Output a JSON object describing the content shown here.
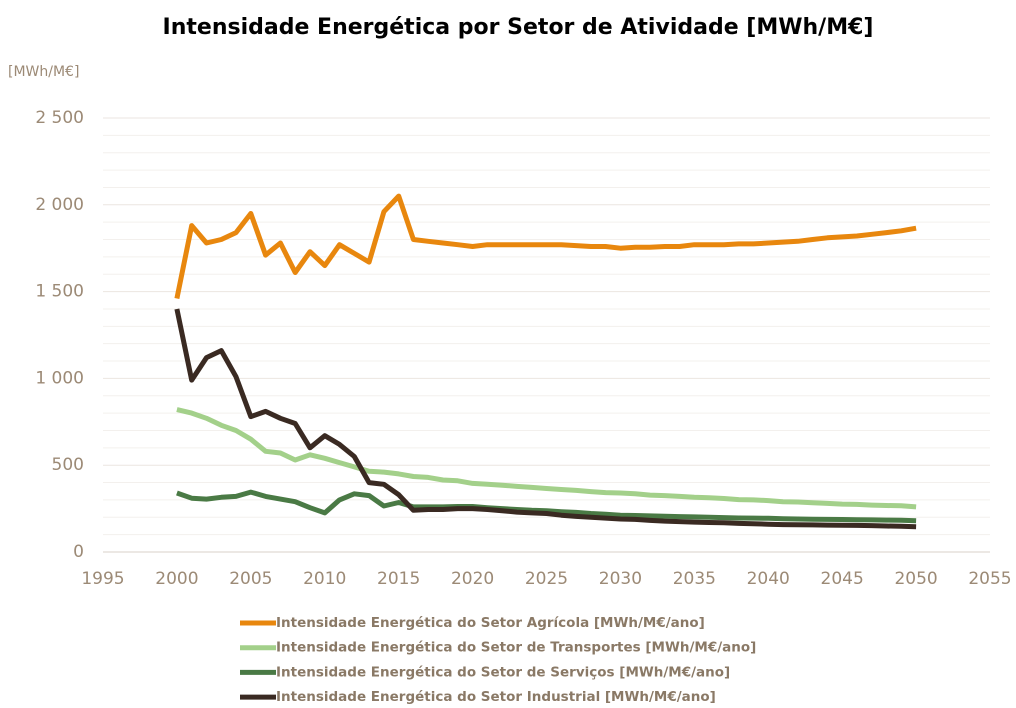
{
  "chart_data": {
    "type": "line",
    "title": "Intensidade Energética por Setor de Atividade [MWh/M€]",
    "y_label": "[MWh/M€]",
    "x": [
      2000,
      2001,
      2002,
      2003,
      2004,
      2005,
      2006,
      2007,
      2008,
      2009,
      2010,
      2011,
      2012,
      2013,
      2014,
      2015,
      2016,
      2017,
      2018,
      2019,
      2020,
      2021,
      2022,
      2023,
      2024,
      2025,
      2026,
      2027,
      2028,
      2029,
      2030,
      2031,
      2032,
      2033,
      2034,
      2035,
      2036,
      2037,
      2038,
      2039,
      2040,
      2041,
      2042,
      2043,
      2044,
      2045,
      2046,
      2047,
      2048,
      2049,
      2050
    ],
    "series": [
      {
        "name": "Intensidade Energética do Setor Agrícola [MWh/M€/ano]",
        "color": "#e8870e",
        "values": [
          1460,
          1880,
          1780,
          1800,
          1840,
          1950,
          1710,
          1780,
          1610,
          1730,
          1650,
          1770,
          1720,
          1670,
          1960,
          2050,
          1800,
          1790,
          1780,
          1770,
          1760,
          1770,
          1770,
          1770,
          1770,
          1770,
          1770,
          1765,
          1760,
          1760,
          1750,
          1755,
          1755,
          1760,
          1760,
          1770,
          1770,
          1770,
          1775,
          1775,
          1780,
          1785,
          1790,
          1800,
          1810,
          1815,
          1820,
          1830,
          1840,
          1850,
          1865
        ]
      },
      {
        "name": "Intensidade Energética do Setor de Transportes [MWh/M€/ano]",
        "color": "#a3d08a",
        "values": [
          820,
          800,
          770,
          730,
          700,
          650,
          580,
          570,
          530,
          560,
          540,
          515,
          490,
          465,
          460,
          450,
          435,
          430,
          415,
          410,
          395,
          390,
          385,
          378,
          372,
          366,
          360,
          355,
          348,
          342,
          340,
          335,
          328,
          325,
          320,
          315,
          312,
          308,
          302,
          300,
          296,
          290,
          288,
          284,
          280,
          276,
          274,
          270,
          268,
          266,
          260
        ]
      },
      {
        "name": "Intensidade Energética do Setor de Serviços [MWh/M€/ano]",
        "color": "#4a7a45",
        "values": [
          340,
          310,
          305,
          315,
          320,
          345,
          320,
          305,
          290,
          255,
          225,
          300,
          335,
          325,
          265,
          285,
          260,
          260,
          260,
          262,
          262,
          255,
          250,
          245,
          240,
          238,
          232,
          228,
          222,
          218,
          212,
          210,
          208,
          206,
          204,
          202,
          200,
          198,
          196,
          195,
          194,
          192,
          190,
          189,
          188,
          187,
          186,
          185,
          184,
          183,
          180
        ]
      },
      {
        "name": "Intensidade Energética do Setor Industrial [MWh/M€/ano]",
        "color": "#3a2a22",
        "values": [
          1400,
          990,
          1120,
          1160,
          1010,
          780,
          810,
          770,
          740,
          600,
          670,
          620,
          550,
          400,
          390,
          330,
          240,
          245,
          245,
          250,
          250,
          245,
          238,
          230,
          225,
          222,
          212,
          205,
          200,
          195,
          190,
          188,
          182,
          178,
          175,
          172,
          170,
          168,
          165,
          163,
          160,
          158,
          157,
          156,
          155,
          154,
          153,
          152,
          150,
          148,
          145
        ]
      }
    ],
    "xlim": [
      1995,
      2055
    ],
    "xticks": [
      1995,
      2000,
      2005,
      2010,
      2015,
      2020,
      2025,
      2030,
      2035,
      2040,
      2045,
      2050,
      2055
    ],
    "ylim": [
      0,
      2500
    ],
    "yticks": [
      0,
      500,
      {
        "value": 1000,
        "label": "1 000"
      },
      {
        "value": 1500,
        "label": "1 500"
      },
      {
        "value": 2000,
        "label": "2 000"
      },
      {
        "value": 2500,
        "label": "2 500"
      }
    ],
    "yminor_ticks": [
      100,
      200,
      300,
      400,
      600,
      700,
      800,
      900,
      1100,
      1200,
      1300,
      1400,
      1600,
      1700,
      1800,
      1900,
      2100,
      2200,
      2300,
      2400
    ],
    "grid": true,
    "legend": "bottom"
  }
}
